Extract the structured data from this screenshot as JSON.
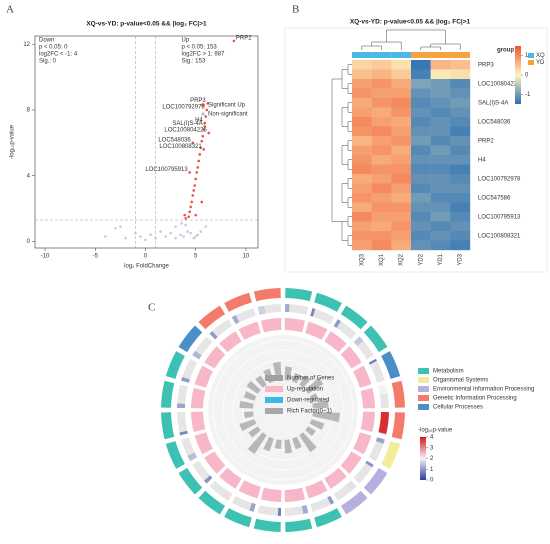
{
  "chart_data": [
    {
      "type": "scatter",
      "panel": "A",
      "title": "XQ-vs-YD: p-value<0.05 && |log₂ FC|>1",
      "x_label": "log₂ FoldChange",
      "y_label": "-log₁₀p-value",
      "xlim": [
        -11,
        11.2
      ],
      "ylim": [
        -0.4,
        12.5
      ],
      "xticks": [
        -10,
        -5,
        0,
        5,
        10
      ],
      "yticks": [
        0,
        4,
        8,
        12
      ],
      "thresholds": {
        "x": [
          -1,
          1
        ],
        "y": 1.3
      },
      "down_box": [
        "Down",
        "p < 0.05: 0",
        "log2FC < -1: 4",
        "Sig.: 0"
      ],
      "up_box": [
        "Up",
        "p < 0.05: 153",
        "log2FC > 1: 987",
        "Sig.: 153"
      ],
      "legend": "right",
      "series": [
        {
          "name": "Significant Up",
          "color": "#e8402b",
          "x": [
            4.3,
            4.4,
            4.5,
            4.6,
            4.7,
            4.8,
            4.9,
            5.0,
            5.1,
            5.2,
            5.3,
            5.4,
            5.5,
            5.6,
            5.7,
            5.8,
            5.9,
            6.0,
            6.1,
            6.2,
            8.8,
            4.4,
            4.7,
            5.0,
            5.6,
            4.0,
            3.9,
            5.8,
            6.3,
            5.9
          ],
          "values": [
            1.5,
            1.8,
            2.1,
            2.4,
            2.8,
            3.1,
            3.4,
            3.8,
            4.2,
            4.5,
            4.9,
            5.3,
            5.7,
            6.1,
            6.4,
            6.8,
            7.2,
            7.6,
            8.0,
            8.4,
            12.2,
            4.2,
            6.0,
            1.6,
            2.4,
            1.4,
            1.6,
            5.6,
            6.6,
            7.0
          ],
          "labels": [
            null,
            null,
            null,
            null,
            null,
            null,
            null,
            null,
            null,
            null,
            null,
            null,
            null,
            null,
            null,
            null,
            "H4",
            null,
            "LOC100792978",
            "PRP3",
            "PRP2",
            "LOC100795913",
            "LOC548036",
            null,
            null,
            null,
            null,
            "LOC100808321",
            "LOC100804226",
            "SAL(I)S-4A"
          ]
        },
        {
          "name": "Non-significant",
          "color": "#b8c8d8",
          "x": [
            5.0,
            5.2,
            4.8,
            4.5,
            4.2,
            3.8,
            3.5,
            3.0,
            2.5,
            2.0,
            1.5,
            1.0,
            0.5,
            0.0,
            -0.5,
            -1.0,
            -2.0,
            -3.0,
            -4.0,
            -2.5,
            4.0,
            3.6,
            5.5,
            6.0,
            3.0
          ],
          "values": [
            0.3,
            0.4,
            0.2,
            0.5,
            0.6,
            0.3,
            0.4,
            0.2,
            0.5,
            0.3,
            0.6,
            0.2,
            0.4,
            0.1,
            0.3,
            0.5,
            0.2,
            0.8,
            0.3,
            0.9,
            1.0,
            1.1,
            0.6,
            0.9,
            0.9
          ]
        }
      ]
    },
    {
      "type": "heatmap",
      "panel": "B",
      "title": "XQ-vs-YD: p-value<0.05 && |log₂ FC|>1",
      "columns": [
        "XQ3",
        "XQ1",
        "XQ2",
        "YD2",
        "YD1",
        "YD3"
      ],
      "column_groups": [
        0,
        0,
        0,
        1,
        1,
        1
      ],
      "group_title": "group",
      "groups": [
        {
          "name": "XQ",
          "color": "#4bb8e6"
        },
        {
          "name": "YD",
          "color": "#f4a340"
        }
      ],
      "rows": [
        "PRP3",
        null,
        "LOC100804226",
        null,
        "SAL(I)S-4A",
        null,
        "LOC548036",
        null,
        "PRP2",
        null,
        "H4",
        null,
        "LOC100792978",
        null,
        "LOC547586",
        null,
        "LOC100795913",
        null,
        "LOC100808321",
        null
      ],
      "values": [
        [
          0.3,
          0.4,
          0.2,
          -1.4,
          0.6,
          0.5
        ],
        [
          0.5,
          0.6,
          0.4,
          -1.3,
          0.1,
          0.2
        ],
        [
          0.8,
          0.9,
          0.7,
          -0.9,
          -1.0,
          -1.2
        ],
        [
          0.9,
          0.8,
          0.8,
          -1.1,
          -1.0,
          -1.1
        ],
        [
          0.7,
          0.9,
          1.0,
          -1.2,
          -1.1,
          -1.0
        ],
        [
          0.8,
          0.7,
          0.9,
          -1.1,
          -1.2,
          -1.1
        ],
        [
          1.0,
          0.8,
          0.7,
          -1.2,
          -1.1,
          -1.2
        ],
        [
          0.9,
          1.0,
          0.8,
          -1.1,
          -1.1,
          -1.3
        ],
        [
          0.6,
          0.8,
          0.9,
          -1.0,
          -1.2,
          -1.1
        ],
        [
          0.8,
          0.9,
          0.7,
          -1.2,
          -1.0,
          -1.2
        ],
        [
          0.9,
          0.7,
          0.8,
          -1.1,
          -1.1,
          -1.1
        ],
        [
          1.0,
          0.9,
          0.9,
          -1.2,
          -1.2,
          -1.3
        ],
        [
          0.7,
          0.8,
          1.0,
          -1.1,
          -1.1,
          -1.2
        ],
        [
          0.8,
          1.0,
          0.8,
          -1.2,
          -1.1,
          -1.1
        ],
        [
          0.9,
          0.8,
          0.7,
          -1.0,
          -1.2,
          -1.2
        ],
        [
          0.7,
          0.9,
          0.9,
          -1.1,
          -1.1,
          -1.3
        ],
        [
          1.0,
          0.8,
          0.8,
          -1.2,
          -1.0,
          -1.2
        ],
        [
          0.8,
          0.7,
          0.9,
          -1.1,
          -1.2,
          -1.1
        ],
        [
          0.9,
          0.9,
          0.8,
          -1.2,
          -1.1,
          -1.2
        ],
        [
          0.8,
          1.0,
          0.7,
          -1.1,
          -1.2,
          -1.3
        ]
      ],
      "colors": [
        "#2b6eb3",
        "#fdf5c0",
        "#f0542b"
      ],
      "colorbar": {
        "lim": [
          -1.5,
          1.5
        ],
        "ticks": [
          1,
          0,
          -1
        ]
      }
    },
    {
      "type": "circular",
      "panel": "C",
      "categories": [
        {
          "name": "Metabolism",
          "color": "#3cc1b3"
        },
        {
          "name": "Organismal Systems",
          "color": "#f3ec9a"
        },
        {
          "name": "Environmental Information Processing",
          "color": "#b9aee0"
        },
        {
          "name": "Genetic Information Processing",
          "color": "#f47a6a"
        },
        {
          "name": "Cellular Processes",
          "color": "#4a8fc8"
        }
      ],
      "inner_legend": [
        "Number of Genes",
        "Up-regulation",
        "Down-regulated",
        "Rich Factor(0~1)"
      ],
      "inner_colors": [
        "#a0a0a0",
        "#f7b7c8",
        "#3cb8e8",
        "#a8a8a8"
      ],
      "sector_category": [
        0,
        0,
        0,
        0,
        4,
        3,
        3,
        1,
        2,
        2,
        0,
        0,
        0,
        0,
        0,
        0,
        0,
        0,
        0,
        0,
        4,
        3,
        3,
        3
      ],
      "gene_counts": [
        6,
        4,
        5,
        8,
        3,
        12,
        30,
        6,
        4,
        9,
        5,
        7,
        4,
        6,
        10,
        5,
        8,
        4,
        6,
        5,
        7,
        5,
        6,
        9
      ],
      "up_counts": [
        6,
        4,
        5,
        8,
        3,
        12,
        30,
        6,
        4,
        9,
        5,
        7,
        4,
        6,
        10,
        5,
        8,
        4,
        6,
        5,
        7,
        5,
        6,
        9
      ],
      "rich_factor": [
        0.3,
        0.2,
        0.25,
        0.4,
        0.15,
        0.35,
        0.6,
        0.3,
        0.2,
        0.45,
        0.25,
        0.3,
        0.2,
        0.3,
        0.5,
        0.25,
        0.35,
        0.2,
        0.3,
        0.25,
        0.3,
        0.25,
        0.3,
        0.4
      ],
      "neg_log10_p": [
        1.2,
        0.8,
        1.0,
        1.5,
        0.6,
        2.0,
        3.8,
        1.1,
        0.9,
        1.8,
        1.0,
        1.2,
        0.7,
        1.1,
        2.2,
        0.9,
        1.4,
        0.8,
        1.1,
        1.0,
        1.3,
        1.0,
        1.2,
        1.6
      ],
      "genes_lim": [
        0,
        32
      ],
      "rich_lim": [
        0,
        1
      ],
      "p_title": "-log₁₀p-value",
      "p_colors": [
        "#2c3e9e",
        "#f4f4f4",
        "#d7191c"
      ],
      "p_colorbar": {
        "lim": [
          0,
          4
        ],
        "ticks": [
          0,
          1,
          2,
          3,
          4
        ]
      }
    }
  ]
}
